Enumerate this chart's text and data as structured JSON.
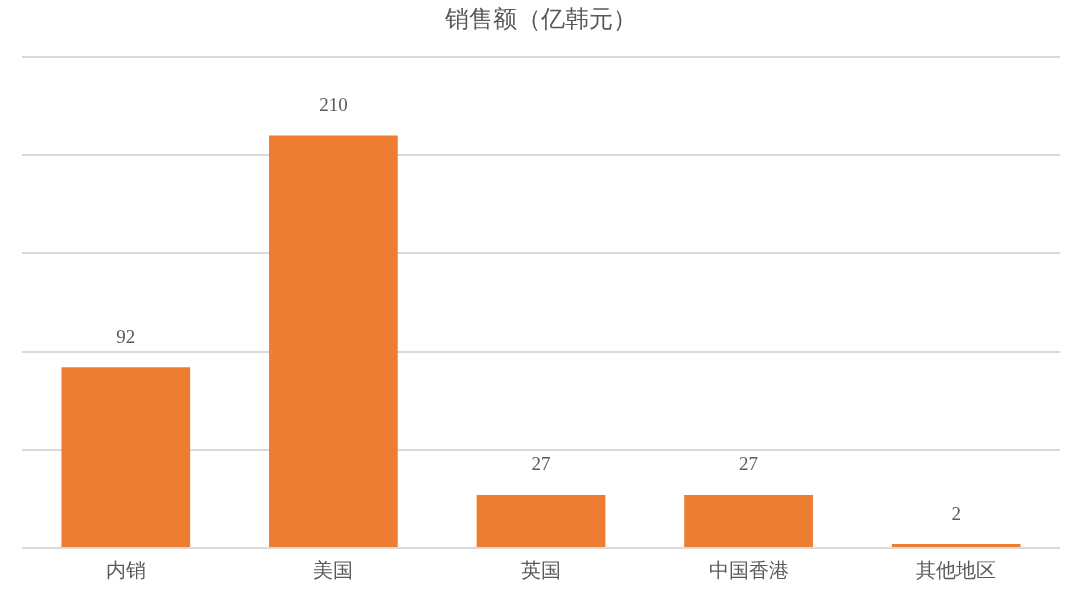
{
  "chart_data": {
    "type": "bar",
    "title": "销售额（亿韩元）",
    "categories": [
      "内销",
      "美国",
      "英国",
      "中国香港",
      "其他地区"
    ],
    "values": [
      92,
      210,
      27,
      27,
      2
    ],
    "color": "#ed7d31",
    "ylim": [
      0,
      250
    ],
    "yticks": [
      {
        "value": 0,
        "label": null
      },
      {
        "value": 50,
        "label": null
      },
      {
        "value": 100,
        "label": null
      },
      {
        "value": 150,
        "label": null
      },
      {
        "value": 200,
        "label": null
      },
      {
        "value": 250,
        "label": null
      }
    ],
    "tick_labels": "x",
    "grid": "y",
    "data_labels": true
  }
}
